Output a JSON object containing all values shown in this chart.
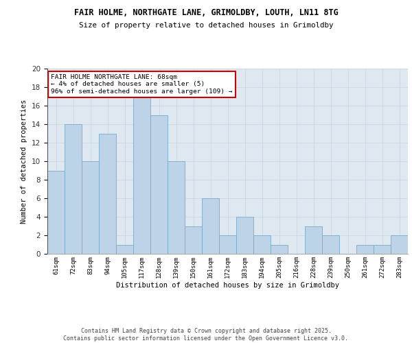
{
  "title": "FAIR HOLME, NORTHGATE LANE, GRIMOLDBY, LOUTH, LN11 8TG",
  "subtitle": "Size of property relative to detached houses in Grimoldby",
  "xlabel": "Distribution of detached houses by size in Grimoldby",
  "ylabel": "Number of detached properties",
  "categories": [
    "61sqm",
    "72sqm",
    "83sqm",
    "94sqm",
    "105sqm",
    "117sqm",
    "128sqm",
    "139sqm",
    "150sqm",
    "161sqm",
    "172sqm",
    "183sqm",
    "194sqm",
    "205sqm",
    "216sqm",
    "228sqm",
    "239sqm",
    "250sqm",
    "261sqm",
    "272sqm",
    "283sqm"
  ],
  "values": [
    9,
    14,
    10,
    13,
    1,
    17,
    15,
    10,
    3,
    6,
    2,
    4,
    2,
    1,
    0,
    3,
    2,
    0,
    1,
    1,
    2
  ],
  "bar_color": "#bdd4e8",
  "bar_edge_color": "#7aaac8",
  "background_color": "#ffffff",
  "grid_color": "#d0d8e4",
  "vline_color": "#cc0000",
  "annotation_text": "FAIR HOLME NORTHGATE LANE: 68sqm\n← 4% of detached houses are smaller (5)\n96% of semi-detached houses are larger (109) →",
  "annotation_box_color": "#ffffff",
  "annotation_box_edge_color": "#cc0000",
  "ylim": [
    0,
    20
  ],
  "yticks": [
    0,
    2,
    4,
    6,
    8,
    10,
    12,
    14,
    16,
    18,
    20
  ],
  "ax_facecolor": "#dde8f0",
  "footer": "Contains HM Land Registry data © Crown copyright and database right 2025.\nContains public sector information licensed under the Open Government Licence v3.0."
}
